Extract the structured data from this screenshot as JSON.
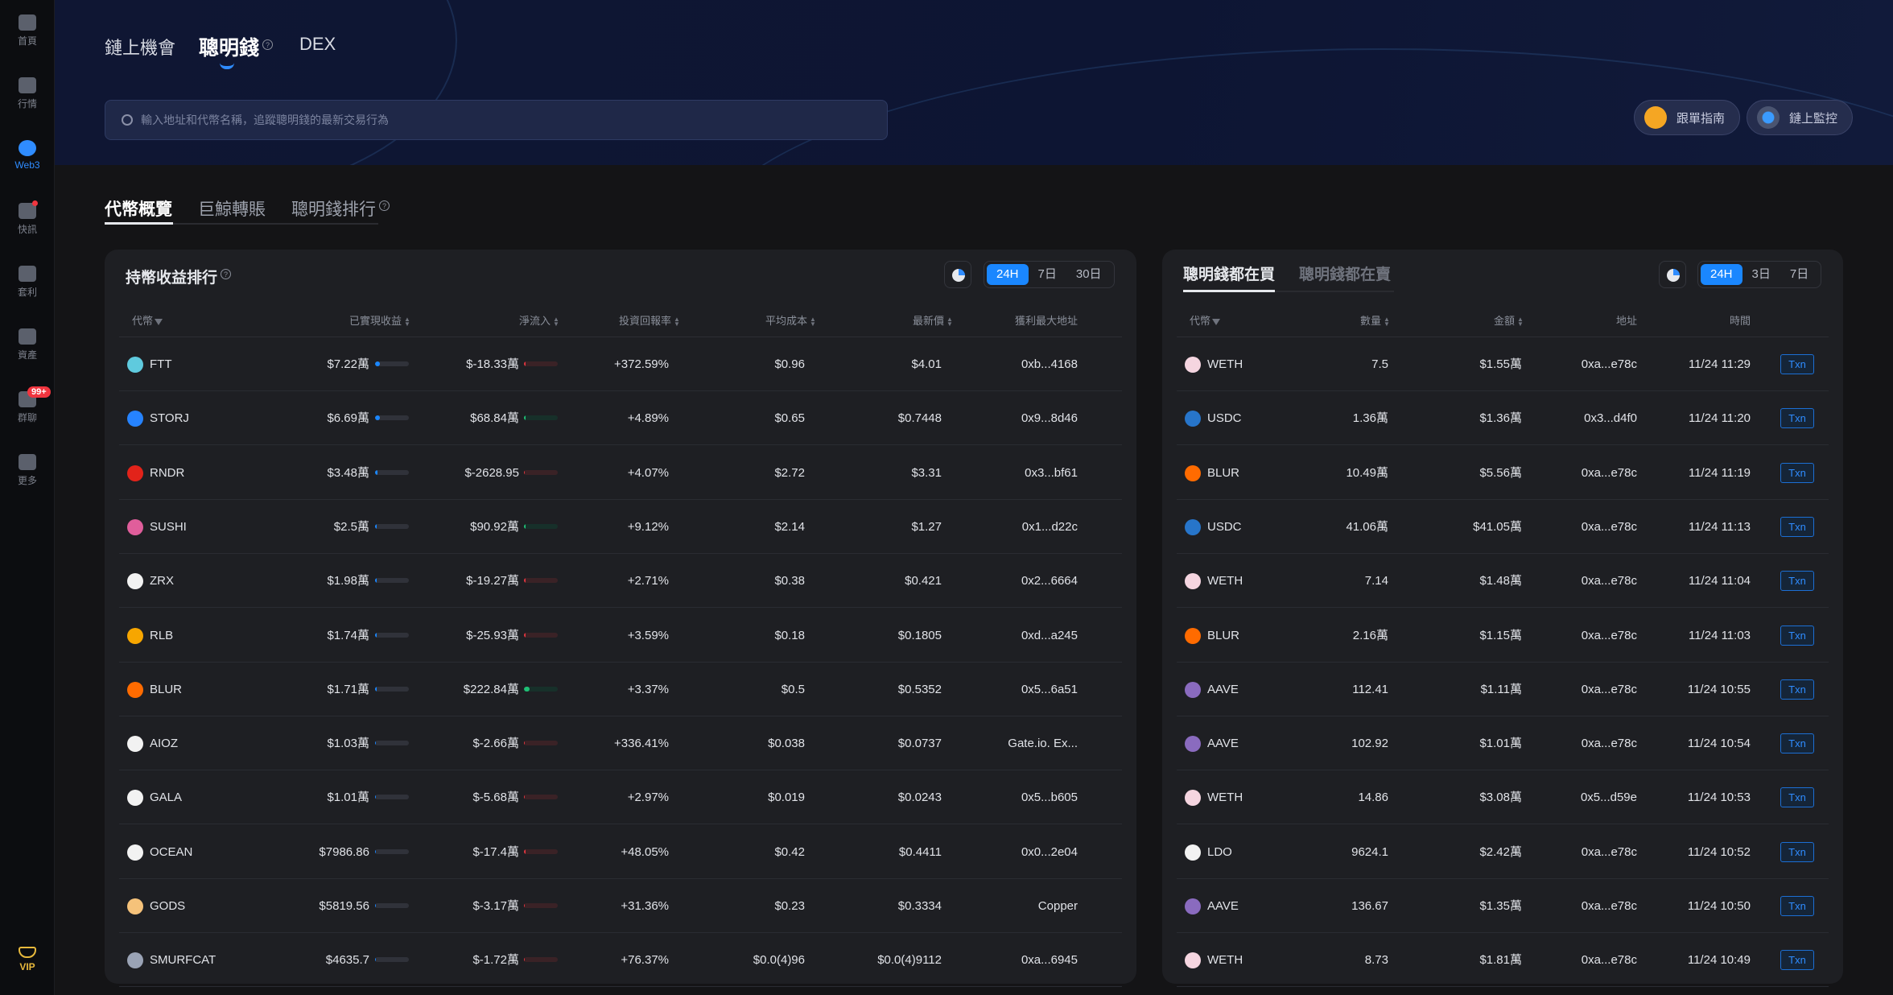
{
  "colors": {
    "accent": "#1a87ff",
    "negative": "#e0353f",
    "positive": "#1fbf75",
    "header_bg": "#0f1633",
    "panel_bg": "#1e1f23"
  },
  "sidebar": {
    "items": [
      {
        "label": "首頁",
        "icon": "home-logo-icon"
      },
      {
        "label": "行情",
        "icon": "chart-bar-icon"
      },
      {
        "label": "Web3",
        "icon": "web3-icon",
        "active": true
      },
      {
        "label": "快訊",
        "icon": "news-icon",
        "dot": true
      },
      {
        "label": "套利",
        "icon": "arbitrage-icon"
      },
      {
        "label": "資產",
        "icon": "wallet-icon"
      },
      {
        "label": "群聊",
        "icon": "chat-icon",
        "badge": "99+"
      },
      {
        "label": "更多",
        "icon": "more-grid-icon"
      }
    ],
    "vip": "VIP"
  },
  "header": {
    "tabs": [
      {
        "label": "鏈上機會"
      },
      {
        "label": "聰明錢",
        "active": true
      },
      {
        "label": "DEX"
      }
    ],
    "search_placeholder": "輸入地址和代幣名稱，追蹤聰明錢的最新交易行為",
    "buttons": [
      {
        "label": "跟單指南",
        "icon": "guide-icon"
      },
      {
        "label": "鏈上監控",
        "icon": "monitor-target-icon"
      }
    ]
  },
  "subtabs": [
    {
      "label": "代幣概覽",
      "active": true
    },
    {
      "label": "巨鯨轉賬"
    },
    {
      "label": "聰明錢排行"
    }
  ],
  "left": {
    "title": "持幣收益排行",
    "ranges": [
      "24H",
      "7日",
      "30日"
    ],
    "active_range": "24H",
    "columns": [
      "代幣",
      "已實現收益",
      "淨流入",
      "投資回報率",
      "平均成本",
      "最新價",
      "獲利最大地址"
    ],
    "rows": [
      {
        "token": "FTT",
        "color": "#5fcade",
        "realized": "$7.22萬",
        "realized_bar": 0.14,
        "inflow": "$-18.33萬",
        "inflow_bar": 0.05,
        "inflow_sign": "neg",
        "roi": "+372.59%",
        "avg": "$0.96",
        "price": "$4.01",
        "addr": "0xb...4168"
      },
      {
        "token": "STORJ",
        "color": "#2683ff",
        "realized": "$6.69萬",
        "realized_bar": 0.14,
        "inflow": "$68.84萬",
        "inflow_bar": 0.05,
        "inflow_sign": "pos",
        "roi": "+4.89%",
        "avg": "$0.65",
        "price": "$0.7448",
        "addr": "0x9...8d46"
      },
      {
        "token": "RNDR",
        "color": "#e2231a",
        "realized": "$3.48萬",
        "realized_bar": 0.06,
        "inflow": "$-2628.95",
        "inflow_bar": 0.01,
        "inflow_sign": "neg",
        "roi": "+4.07%",
        "avg": "$2.72",
        "price": "$3.31",
        "addr": "0x3...bf61"
      },
      {
        "token": "SUSHI",
        "color": "#e05e9b",
        "realized": "$2.5萬",
        "realized_bar": 0.05,
        "inflow": "$90.92萬",
        "inflow_bar": 0.05,
        "inflow_sign": "pos",
        "roi": "+9.12%",
        "avg": "$2.14",
        "price": "$1.27",
        "addr": "0x1...d22c"
      },
      {
        "token": "ZRX",
        "color": "#f2f2f2",
        "realized": "$1.98萬",
        "realized_bar": 0.04,
        "inflow": "$-19.27萬",
        "inflow_bar": 0.05,
        "inflow_sign": "neg",
        "roi": "+2.71%",
        "avg": "$0.38",
        "price": "$0.421",
        "addr": "0x2...6664"
      },
      {
        "token": "RLB",
        "color": "#f7a600",
        "realized": "$1.74萬",
        "realized_bar": 0.04,
        "inflow": "$-25.93萬",
        "inflow_bar": 0.05,
        "inflow_sign": "neg",
        "roi": "+3.59%",
        "avg": "$0.18",
        "price": "$0.1805",
        "addr": "0xd...a245"
      },
      {
        "token": "BLUR",
        "color": "#ff6b00",
        "realized": "$1.71萬",
        "realized_bar": 0.04,
        "inflow": "$222.84萬",
        "inflow_bar": 0.16,
        "inflow_sign": "pos",
        "roi": "+3.37%",
        "avg": "$0.5",
        "price": "$0.5352",
        "addr": "0x5...6a51"
      },
      {
        "token": "AIOZ",
        "color": "#f2f2f2",
        "realized": "$1.03萬",
        "realized_bar": 0.03,
        "inflow": "$-2.66萬",
        "inflow_bar": 0.03,
        "inflow_sign": "neg",
        "roi": "+336.41%",
        "avg": "$0.038",
        "price": "$0.0737",
        "addr": "Gate.io. Ex..."
      },
      {
        "token": "GALA",
        "color": "#f2f2f2",
        "realized": "$1.01萬",
        "realized_bar": 0.03,
        "inflow": "$-5.68萬",
        "inflow_bar": 0.03,
        "inflow_sign": "neg",
        "roi": "+2.97%",
        "avg": "$0.019",
        "price": "$0.0243",
        "addr": "0x5...b605"
      },
      {
        "token": "OCEAN",
        "color": "#f2f2f2",
        "realized": "$7986.86",
        "realized_bar": 0.03,
        "inflow": "$-17.4萬",
        "inflow_bar": 0.05,
        "inflow_sign": "neg",
        "roi": "+48.05%",
        "avg": "$0.42",
        "price": "$0.4411",
        "addr": "0x0...2e04"
      },
      {
        "token": "GODS",
        "color": "#f5c27a",
        "realized": "$5819.56",
        "realized_bar": 0.03,
        "inflow": "$-3.17萬",
        "inflow_bar": 0.03,
        "inflow_sign": "neg",
        "roi": "+31.36%",
        "avg": "$0.23",
        "price": "$0.3334",
        "addr": "Copper"
      },
      {
        "token": "SMURFCAT",
        "color": "#9aa3b5",
        "realized": "$4635.7",
        "realized_bar": 0.02,
        "inflow": "$-1.72萬",
        "inflow_bar": 0.02,
        "inflow_sign": "neg",
        "roi": "+76.37%",
        "avg": "$0.0(4)96",
        "price": "$0.0(4)9112",
        "addr": "0xa...6945"
      }
    ]
  },
  "right": {
    "tabs": [
      {
        "label": "聰明錢都在買",
        "active": true
      },
      {
        "label": "聰明錢都在賣"
      }
    ],
    "ranges": [
      "24H",
      "3日",
      "7日"
    ],
    "active_range": "24H",
    "columns": [
      "代幣",
      "數量",
      "金額",
      "地址",
      "時間"
    ],
    "txn_label": "Txn",
    "rows": [
      {
        "token": "WETH",
        "color": "#f5d5e0",
        "qty": "7.5",
        "amount": "$1.55萬",
        "addr": "0xa...e78c",
        "time": "11/24 11:29"
      },
      {
        "token": "USDC",
        "color": "#2775ca",
        "qty": "1.36萬",
        "amount": "$1.36萬",
        "addr": "0x3...d4f0",
        "time": "11/24 11:20"
      },
      {
        "token": "BLUR",
        "color": "#ff6b00",
        "qty": "10.49萬",
        "amount": "$5.56萬",
        "addr": "0xa...e78c",
        "time": "11/24 11:19"
      },
      {
        "token": "USDC",
        "color": "#2775ca",
        "qty": "41.06萬",
        "amount": "$41.05萬",
        "addr": "0xa...e78c",
        "time": "11/24 11:13"
      },
      {
        "token": "WETH",
        "color": "#f5d5e0",
        "qty": "7.14",
        "amount": "$1.48萬",
        "addr": "0xa...e78c",
        "time": "11/24 11:04"
      },
      {
        "token": "BLUR",
        "color": "#ff6b00",
        "qty": "2.16萬",
        "amount": "$1.15萬",
        "addr": "0xa...e78c",
        "time": "11/24 11:03"
      },
      {
        "token": "AAVE",
        "color": "#8a6bbf",
        "qty": "112.41",
        "amount": "$1.11萬",
        "addr": "0xa...e78c",
        "time": "11/24 10:55"
      },
      {
        "token": "AAVE",
        "color": "#8a6bbf",
        "qty": "102.92",
        "amount": "$1.01萬",
        "addr": "0xa...e78c",
        "time": "11/24 10:54"
      },
      {
        "token": "WETH",
        "color": "#f5d5e0",
        "qty": "14.86",
        "amount": "$3.08萬",
        "addr": "0x5...d59e",
        "time": "11/24 10:53"
      },
      {
        "token": "LDO",
        "color": "#f2f2f2",
        "qty": "9624.1",
        "amount": "$2.42萬",
        "addr": "0xa...e78c",
        "time": "11/24 10:52"
      },
      {
        "token": "AAVE",
        "color": "#8a6bbf",
        "qty": "136.67",
        "amount": "$1.35萬",
        "addr": "0xa...e78c",
        "time": "11/24 10:50"
      },
      {
        "token": "WETH",
        "color": "#f5d5e0",
        "qty": "8.73",
        "amount": "$1.81萬",
        "addr": "0xa...e78c",
        "time": "11/24 10:49"
      }
    ]
  }
}
